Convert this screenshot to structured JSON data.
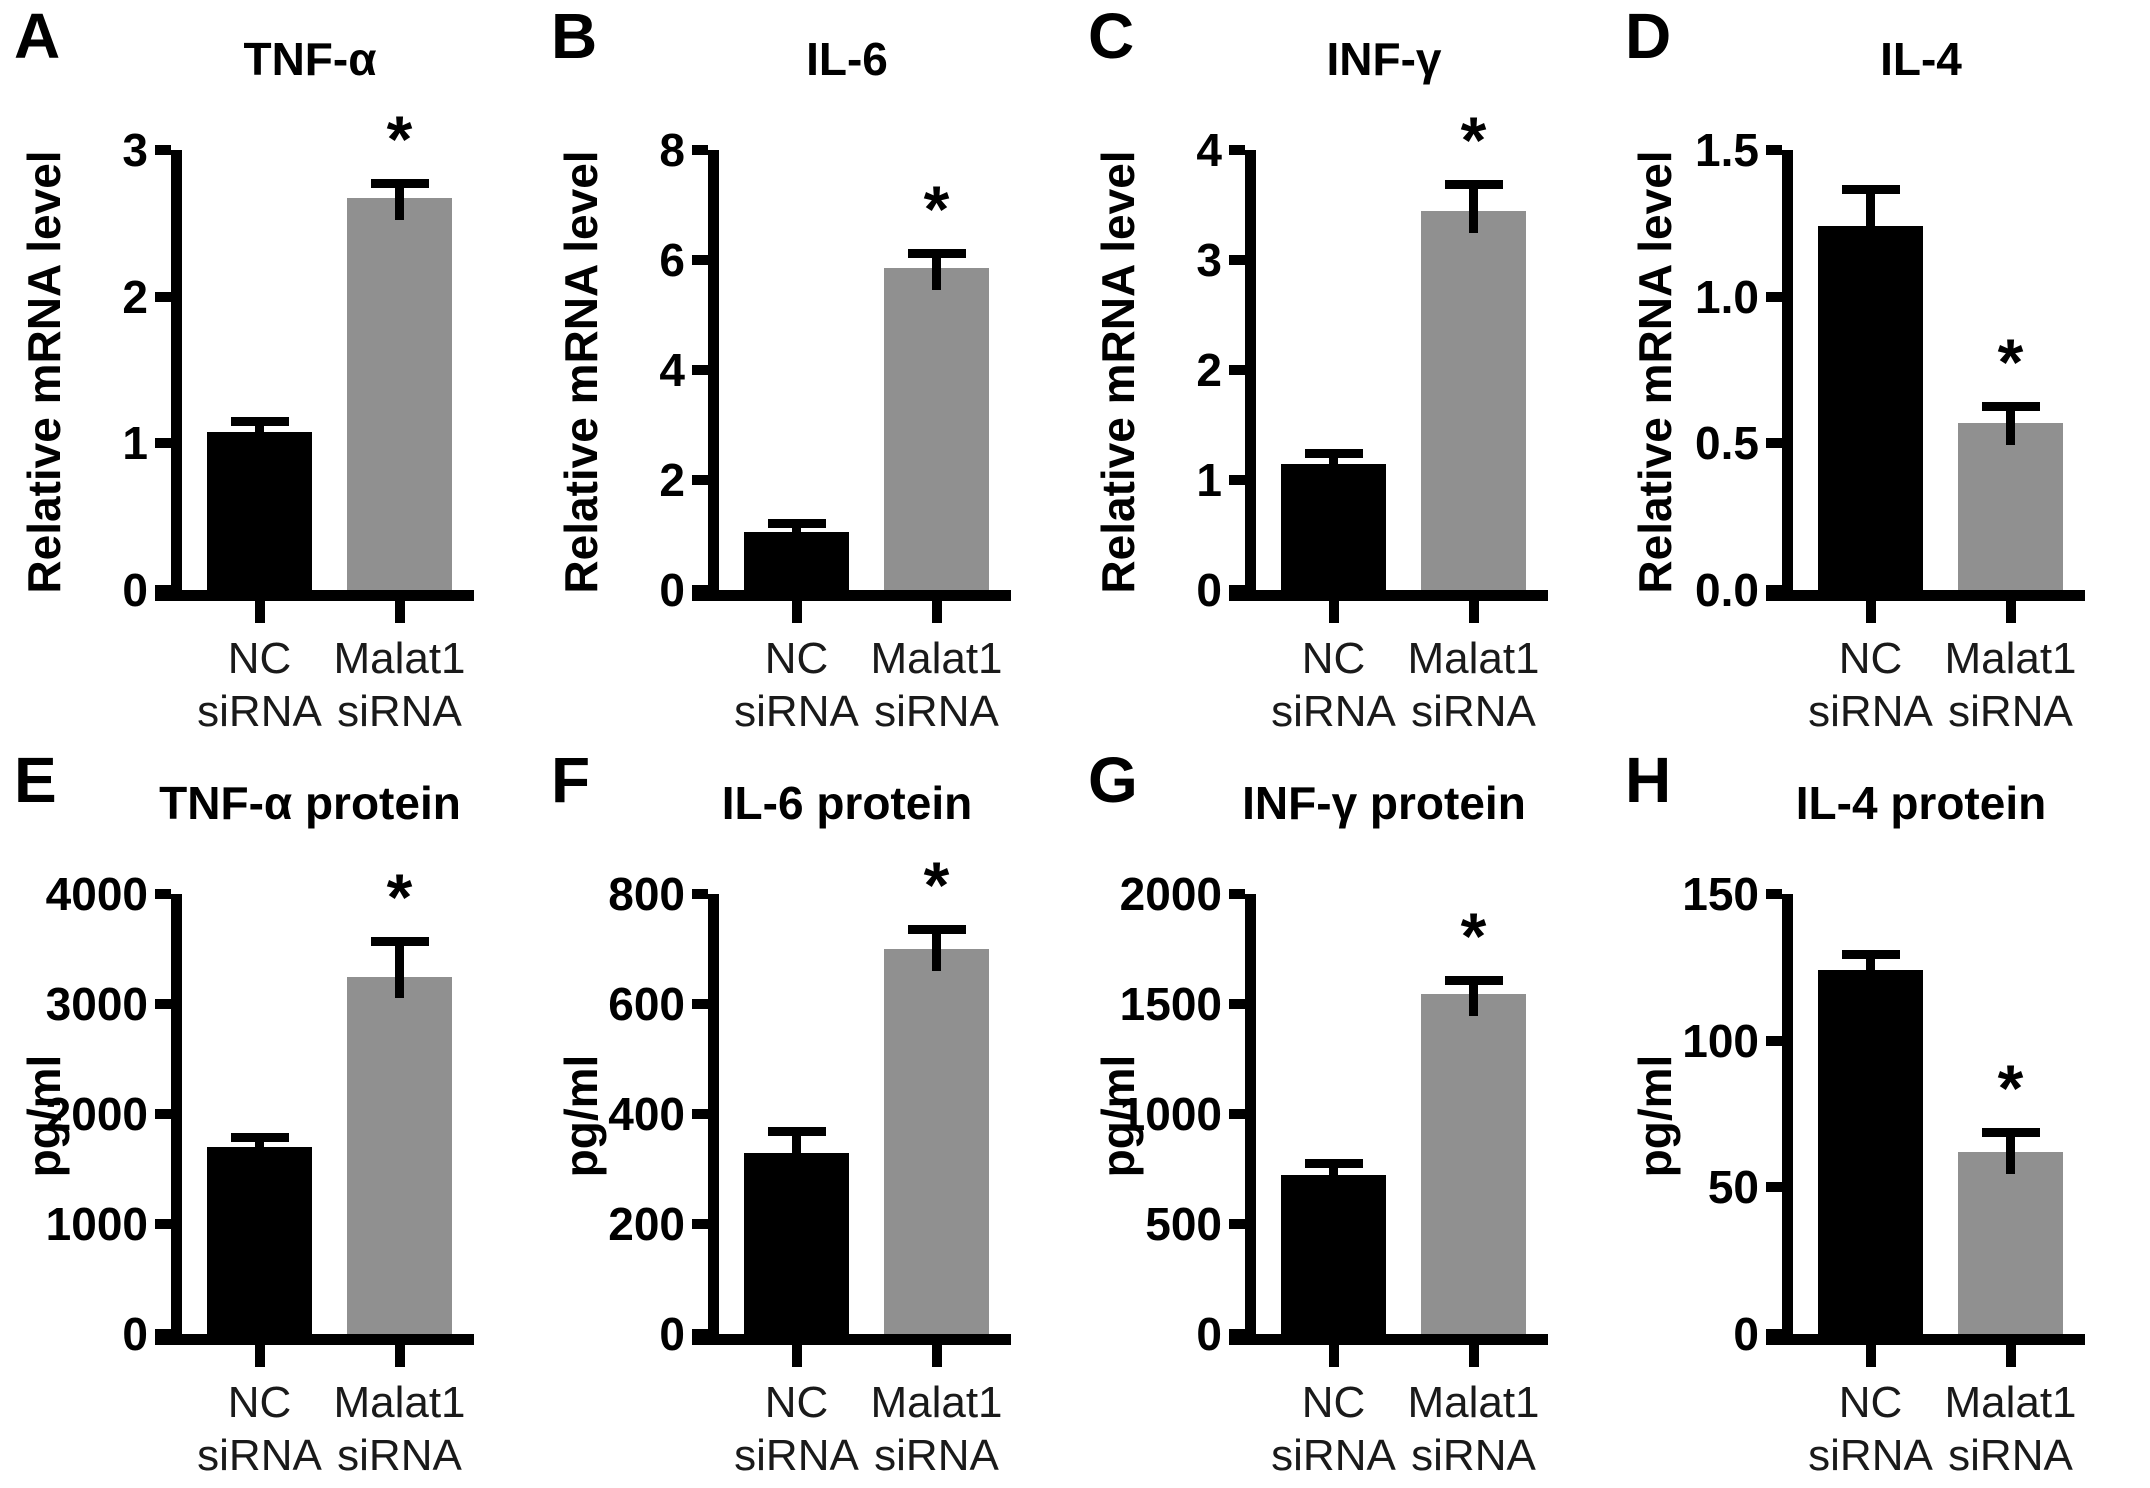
{
  "figure": {
    "background_color": "#ffffff",
    "axis_color": "#000000",
    "bar_colors": {
      "nc_sirna": "#000000",
      "malat1_sirna": "#909090"
    },
    "significance_marker": "*"
  },
  "chart_data": [
    {
      "type": "bar",
      "panel_letter": "A",
      "title": "TNF-α",
      "ylabel": "Relative mRNA level",
      "ylim": [
        0,
        3
      ],
      "yticks": [
        {
          "value": 3,
          "label": "3"
        },
        {
          "value": 2,
          "label": "2"
        },
        {
          "value": 1,
          "label": "1"
        },
        {
          "value": 0,
          "label": "0"
        }
      ],
      "categories": [
        "NC siRNA",
        "Malat1 siRNA"
      ],
      "category_lines": [
        [
          "NC",
          "siRNA"
        ],
        [
          "Malat1",
          "siRNA"
        ]
      ],
      "values": [
        1.08,
        2.67
      ],
      "errors": [
        0.04,
        0.07
      ],
      "significant": [
        false,
        true
      ]
    },
    {
      "type": "bar",
      "panel_letter": "B",
      "title": "IL-6",
      "ylabel": "Relative mRNA level",
      "ylim": [
        0,
        8
      ],
      "yticks": [
        {
          "value": 8,
          "label": "8"
        },
        {
          "value": 6,
          "label": "6"
        },
        {
          "value": 4,
          "label": "4"
        },
        {
          "value": 2,
          "label": "2"
        },
        {
          "value": 0,
          "label": "0"
        }
      ],
      "categories": [
        "NC siRNA",
        "Malat1 siRNA"
      ],
      "category_lines": [
        [
          "NC",
          "siRNA"
        ],
        [
          "Malat1",
          "siRNA"
        ]
      ],
      "values": [
        1.05,
        5.85
      ],
      "errors": [
        0.07,
        0.18
      ],
      "significant": [
        false,
        true
      ]
    },
    {
      "type": "bar",
      "panel_letter": "C",
      "title": "INF-γ",
      "ylabel": "Relative mRNA level",
      "ylim": [
        0,
        4
      ],
      "yticks": [
        {
          "value": 4,
          "label": "4"
        },
        {
          "value": 3,
          "label": "3"
        },
        {
          "value": 2,
          "label": "2"
        },
        {
          "value": 1,
          "label": "1"
        },
        {
          "value": 0,
          "label": "0"
        }
      ],
      "categories": [
        "NC siRNA",
        "Malat1 siRNA"
      ],
      "category_lines": [
        [
          "NC",
          "siRNA"
        ],
        [
          "Malat1",
          "siRNA"
        ]
      ],
      "values": [
        1.15,
        3.45
      ],
      "errors": [
        0.05,
        0.2
      ],
      "significant": [
        false,
        true
      ]
    },
    {
      "type": "bar",
      "panel_letter": "D",
      "title": "IL-4",
      "ylabel": "Relative mRNA level",
      "ylim": [
        0,
        1.5
      ],
      "yticks": [
        {
          "value": 1.5,
          "label": "1.5"
        },
        {
          "value": 1.0,
          "label": "1.0"
        },
        {
          "value": 0.5,
          "label": "0.5"
        },
        {
          "value": 0,
          "label": "0.0"
        }
      ],
      "categories": [
        "NC siRNA",
        "Malat1 siRNA"
      ],
      "category_lines": [
        [
          "NC",
          "siRNA"
        ],
        [
          "Malat1",
          "siRNA"
        ]
      ],
      "values": [
        1.24,
        0.57
      ],
      "errors": [
        0.11,
        0.04
      ],
      "significant": [
        false,
        true
      ]
    },
    {
      "type": "bar",
      "panel_letter": "E",
      "title": "TNF-α protein",
      "ylabel": "pg/ml",
      "ylim": [
        0,
        4000
      ],
      "yticks": [
        {
          "value": 4000,
          "label": "4000"
        },
        {
          "value": 3000,
          "label": "3000"
        },
        {
          "value": 2000,
          "label": "2000"
        },
        {
          "value": 1000,
          "label": "1000"
        },
        {
          "value": 0,
          "label": "0"
        }
      ],
      "categories": [
        "NC siRNA",
        "Malat1 siRNA"
      ],
      "category_lines": [
        [
          "NC",
          "siRNA"
        ],
        [
          "Malat1",
          "siRNA"
        ]
      ],
      "values": [
        1700,
        3250
      ],
      "errors": [
        50,
        280
      ],
      "significant": [
        false,
        true
      ]
    },
    {
      "type": "bar",
      "panel_letter": "F",
      "title": "IL-6 protein",
      "ylabel": "pg/ml",
      "ylim": [
        0,
        800
      ],
      "yticks": [
        {
          "value": 800,
          "label": "800"
        },
        {
          "value": 600,
          "label": "600"
        },
        {
          "value": 400,
          "label": "400"
        },
        {
          "value": 200,
          "label": "200"
        },
        {
          "value": 0,
          "label": "0"
        }
      ],
      "categories": [
        "NC siRNA",
        "Malat1 siRNA"
      ],
      "category_lines": [
        [
          "NC",
          "siRNA"
        ],
        [
          "Malat1",
          "siRNA"
        ]
      ],
      "values": [
        330,
        700
      ],
      "errors": [
        30,
        28
      ],
      "significant": [
        false,
        true
      ]
    },
    {
      "type": "bar",
      "panel_letter": "G",
      "title": "INF-γ protein",
      "ylabel": "pg/ml",
      "ylim": [
        0,
        2000
      ],
      "yticks": [
        {
          "value": 2000,
          "label": "2000"
        },
        {
          "value": 1500,
          "label": "1500"
        },
        {
          "value": 1000,
          "label": "1000"
        },
        {
          "value": 500,
          "label": "500"
        },
        {
          "value": 0,
          "label": "0"
        }
      ],
      "categories": [
        "NC siRNA",
        "Malat1 siRNA"
      ],
      "category_lines": [
        [
          "NC",
          "siRNA"
        ],
        [
          "Malat1",
          "siRNA"
        ]
      ],
      "values": [
        725,
        1545
      ],
      "errors": [
        30,
        40
      ],
      "significant": [
        false,
        true
      ]
    },
    {
      "type": "bar",
      "panel_letter": "H",
      "title": "IL-4 protein",
      "ylabel": "pg/ml",
      "ylim": [
        0,
        150
      ],
      "yticks": [
        {
          "value": 150,
          "label": "150"
        },
        {
          "value": 100,
          "label": "100"
        },
        {
          "value": 50,
          "label": "50"
        },
        {
          "value": 0,
          "label": "0"
        }
      ],
      "categories": [
        "NC siRNA",
        "Malat1 siRNA"
      ],
      "category_lines": [
        [
          "NC",
          "siRNA"
        ],
        [
          "Malat1",
          "siRNA"
        ]
      ],
      "values": [
        124,
        62
      ],
      "errors": [
        4,
        5
      ],
      "significant": [
        false,
        true
      ]
    }
  ]
}
